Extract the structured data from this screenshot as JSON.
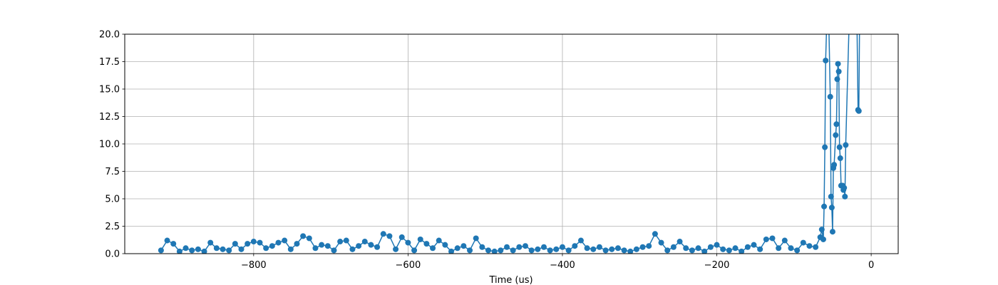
{
  "chart_data": {
    "type": "line",
    "x_label": "Time (us)",
    "x": [
      -920,
      -912,
      -904,
      -896,
      -888,
      -880,
      -872,
      -864,
      -856,
      -848,
      -840,
      -832,
      -824,
      -816,
      -808,
      -800,
      -792,
      -784,
      -776,
      -768,
      -760,
      -752,
      -744,
      -736,
      -728,
      -720,
      -712,
      -704,
      -696,
      -688,
      -680,
      -672,
      -664,
      -656,
      -648,
      -640,
      -632,
      -624,
      -616,
      -608,
      -600,
      -592,
      -584,
      -576,
      -568,
      -560,
      -552,
      -544,
      -536,
      -528,
      -520,
      -512,
      -504,
      -496,
      -488,
      -480,
      -472,
      -464,
      -456,
      -448,
      -440,
      -432,
      -424,
      -416,
      -408,
      -400,
      -392,
      -384,
      -376,
      -368,
      -360,
      -352,
      -344,
      -336,
      -328,
      -320,
      -312,
      -304,
      -296,
      -288,
      -280,
      -272,
      -264,
      -256,
      -248,
      -240,
      -232,
      -224,
      -216,
      -208,
      -200,
      -192,
      -184,
      -176,
      -168,
      -160,
      -152,
      -144,
      -136,
      -128,
      -120,
      -112,
      -104,
      -96,
      -88,
      -80,
      -72,
      -66,
      -64,
      -62,
      -61,
      -60,
      -59,
      -56,
      -53,
      -52,
      -51,
      -50,
      -49,
      -48,
      -46,
      -45,
      -44,
      -43,
      -42,
      -41,
      -40,
      -39,
      -37,
      -36,
      -35,
      -34,
      -33,
      -27,
      -20,
      -17,
      -16,
      -14
    ],
    "series": [
      {
        "color": "#1f77b4",
        "values": [
          0.3,
          1.2,
          0.9,
          0.2,
          0.5,
          0.3,
          0.4,
          0.2,
          1.0,
          0.5,
          0.4,
          0.3,
          0.9,
          0.4,
          0.9,
          1.1,
          1.0,
          0.5,
          0.7,
          1.0,
          1.2,
          0.4,
          0.9,
          1.6,
          1.4,
          0.5,
          0.8,
          0.7,
          0.3,
          1.1,
          1.2,
          0.4,
          0.7,
          1.1,
          0.8,
          0.6,
          1.8,
          1.6,
          0.4,
          1.5,
          1.0,
          0.3,
          1.3,
          0.9,
          0.5,
          1.2,
          0.8,
          0.2,
          0.5,
          0.7,
          0.3,
          1.4,
          0.6,
          0.3,
          0.2,
          0.3,
          0.6,
          0.3,
          0.6,
          0.7,
          0.3,
          0.4,
          0.6,
          0.3,
          0.4,
          0.6,
          0.3,
          0.7,
          1.2,
          0.5,
          0.4,
          0.6,
          0.3,
          0.4,
          0.5,
          0.3,
          0.2,
          0.4,
          0.6,
          0.7,
          1.8,
          1.0,
          0.3,
          0.6,
          1.1,
          0.5,
          0.3,
          0.5,
          0.2,
          0.6,
          0.8,
          0.4,
          0.3,
          0.5,
          0.2,
          0.6,
          0.8,
          0.4,
          1.3,
          1.4,
          0.5,
          1.2,
          0.5,
          0.3,
          1.0,
          0.7,
          0.6,
          1.5,
          2.2,
          1.3,
          4.3,
          9.7,
          17.6,
          25,
          14.3,
          5.2,
          4.2,
          2.0,
          7.8,
          8.1,
          10.8,
          11.8,
          15.9,
          17.3,
          16.6,
          9.7,
          8.7,
          6.2,
          6.2,
          5.8,
          6.0,
          5.2,
          9.9,
          25,
          30,
          13.1,
          13.0,
          30
        ]
      }
    ],
    "xlim": [
      -967,
      35
    ],
    "ylim": [
      0,
      20
    ],
    "xticks": [
      {
        "value": -800,
        "label": "−800"
      },
      {
        "value": -600,
        "label": "−600"
      },
      {
        "value": -400,
        "label": "−400"
      },
      {
        "value": -200,
        "label": "−200"
      },
      {
        "value": 0,
        "label": "0"
      }
    ],
    "yticks": [
      {
        "value": 0,
        "label": "0.0"
      },
      2.5,
      {
        "value": 5,
        "label": "5.0"
      },
      7.5,
      {
        "value": 10,
        "label": "10.0"
      },
      12.5,
      {
        "value": 15,
        "label": "15.0"
      },
      17.5,
      {
        "value": 20,
        "label": "20.0"
      }
    ],
    "grid": true
  }
}
